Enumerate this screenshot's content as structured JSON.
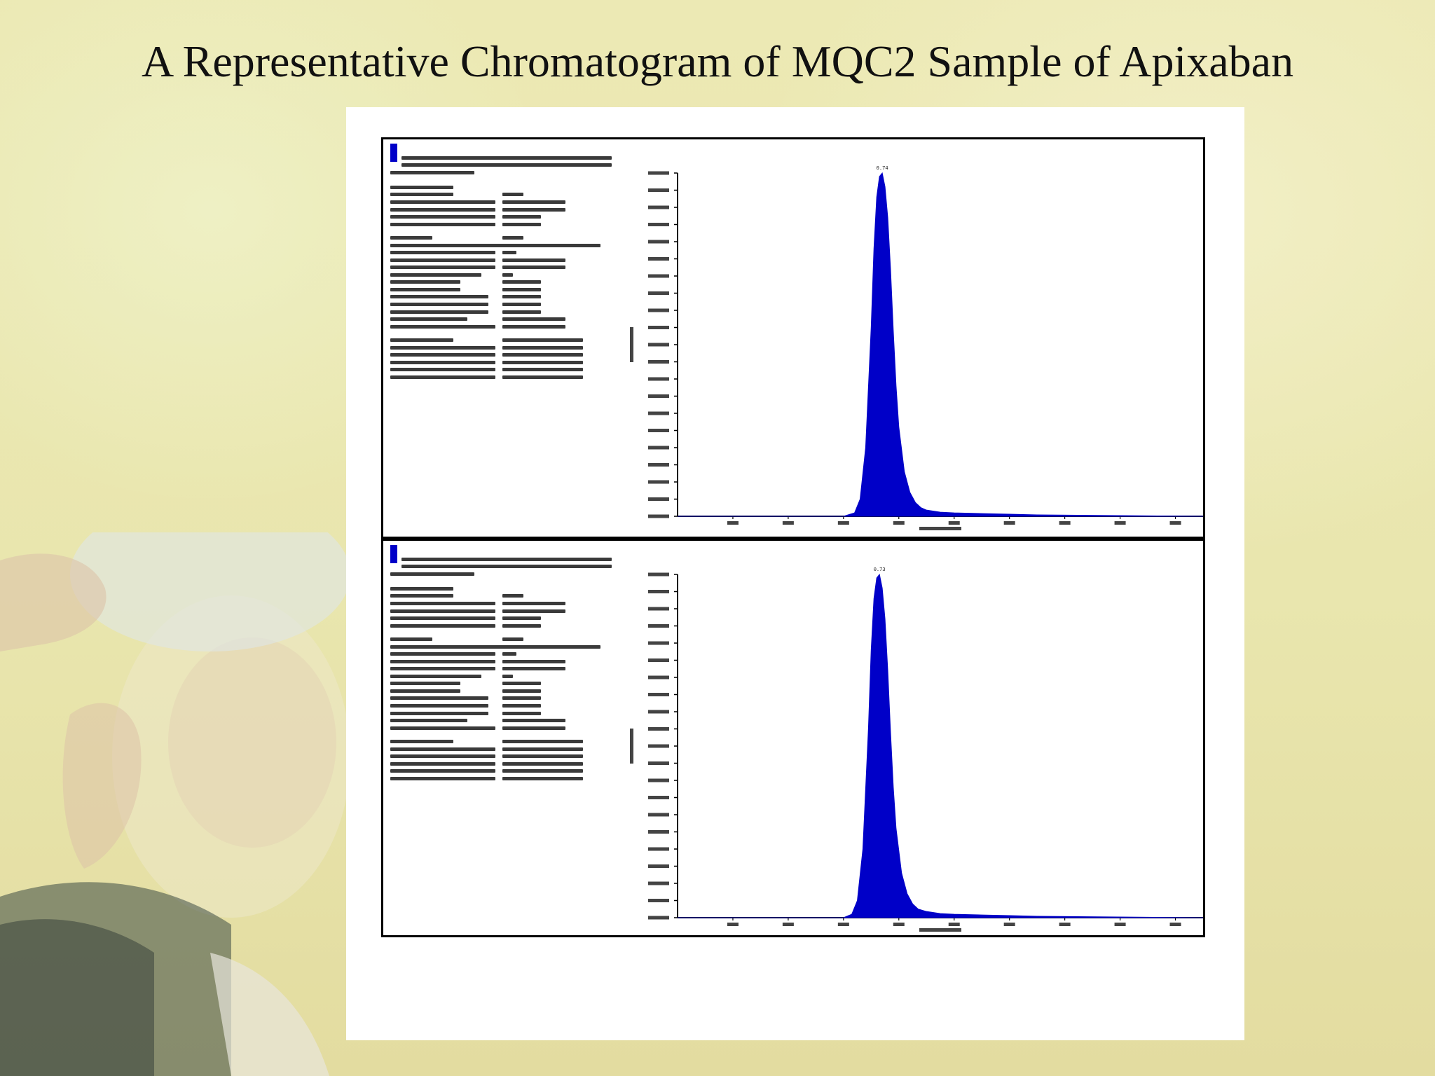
{
  "slide": {
    "title": "A Representative Chromatogram of MQC2 Sample of Apixaban"
  },
  "colors": {
    "peak_fill": "#0000c8",
    "frame": "#000000",
    "panel_bg": "#ffffff"
  },
  "chart_data": [
    {
      "type": "area",
      "peak_label": "0.74",
      "xlim": [
        0.0,
        1.9
      ],
      "ylim": [
        0.0,
        1.0
      ],
      "x_ticks": [
        0.2,
        0.4,
        0.6,
        0.8,
        1.0,
        1.2,
        1.4,
        1.6,
        1.8
      ],
      "y_ticks": [
        0.0,
        0.05,
        0.1,
        0.15,
        0.2,
        0.25,
        0.3,
        0.35,
        0.4,
        0.45,
        0.5,
        0.55,
        0.6,
        0.65,
        0.7,
        0.75,
        0.8,
        0.85,
        0.9,
        0.95,
        1.0
      ],
      "series": [
        {
          "x": [
            0.0,
            0.6,
            0.64,
            0.66,
            0.68,
            0.7,
            0.71,
            0.72,
            0.73,
            0.74,
            0.75,
            0.76,
            0.77,
            0.78,
            0.79,
            0.8,
            0.82,
            0.84,
            0.86,
            0.88,
            0.9,
            0.95,
            1.0,
            1.1,
            1.2,
            1.3,
            1.9
          ],
          "values": [
            0.0,
            0.0,
            0.01,
            0.05,
            0.2,
            0.55,
            0.78,
            0.93,
            0.99,
            1.0,
            0.96,
            0.87,
            0.72,
            0.54,
            0.38,
            0.26,
            0.13,
            0.07,
            0.04,
            0.025,
            0.018,
            0.012,
            0.01,
            0.008,
            0.006,
            0.004,
            0.0
          ]
        }
      ]
    },
    {
      "type": "area",
      "peak_label": "0.73",
      "xlim": [
        0.0,
        1.9
      ],
      "ylim": [
        0.0,
        1.0
      ],
      "x_ticks": [
        0.2,
        0.4,
        0.6,
        0.8,
        1.0,
        1.2,
        1.4,
        1.6,
        1.8
      ],
      "y_ticks": [
        0.0,
        0.05,
        0.1,
        0.15,
        0.2,
        0.25,
        0.3,
        0.35,
        0.4,
        0.45,
        0.5,
        0.55,
        0.6,
        0.65,
        0.7,
        0.75,
        0.8,
        0.85,
        0.9,
        0.95,
        1.0
      ],
      "series": [
        {
          "x": [
            0.0,
            0.6,
            0.63,
            0.65,
            0.67,
            0.69,
            0.7,
            0.71,
            0.72,
            0.73,
            0.74,
            0.75,
            0.76,
            0.77,
            0.78,
            0.79,
            0.81,
            0.83,
            0.85,
            0.87,
            0.9,
            0.95,
            1.0,
            1.1,
            1.2,
            1.3,
            1.9
          ],
          "values": [
            0.0,
            0.0,
            0.01,
            0.05,
            0.2,
            0.55,
            0.78,
            0.93,
            0.99,
            1.0,
            0.96,
            0.87,
            0.72,
            0.54,
            0.38,
            0.26,
            0.13,
            0.07,
            0.04,
            0.025,
            0.018,
            0.012,
            0.01,
            0.008,
            0.006,
            0.004,
            0.0
          ]
        }
      ]
    }
  ]
}
